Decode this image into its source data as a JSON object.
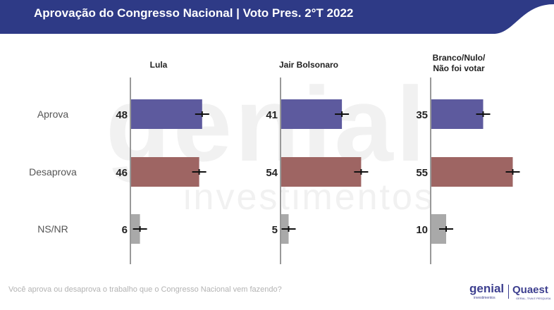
{
  "header": {
    "title": "Aprovação do Congresso Nacional | Voto Pres. 2°T 2022",
    "color": "#2e3a86"
  },
  "watermark": {
    "line1": "genial",
    "line2": "investimentos"
  },
  "footer": {
    "question": "Você aprova ou desaprova o trabalho que o Congresso Nacional vem fazendo?",
    "logo_genial": "genial",
    "logo_genial_sub": "investimentos",
    "logo_quaest": "Quaest",
    "logo_quaest_sub": "GERAL, TIVA E PESQUISA"
  },
  "chart_data": {
    "type": "bar",
    "orientation": "horizontal",
    "categories": [
      "Aprova",
      "Desaprova",
      "NS/NR"
    ],
    "colors": {
      "Aprova": "#5d5a9e",
      "Desaprova": "#9e6563",
      "NS/NR": "#a9a9a9"
    },
    "panels": [
      {
        "title_lines": [
          "Lula"
        ],
        "values": [
          48,
          46,
          6
        ]
      },
      {
        "title_lines": [
          "Jair Bolsonaro"
        ],
        "values": [
          41,
          54,
          5
        ]
      },
      {
        "title_lines": [
          "Branco/Nulo/",
          "Não foi votar"
        ],
        "values": [
          35,
          55,
          10
        ]
      }
    ],
    "error_bars": true
  }
}
